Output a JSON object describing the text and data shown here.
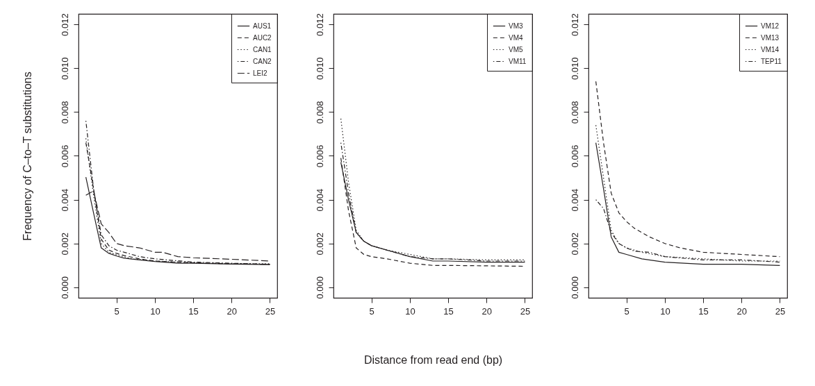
{
  "chart_data": [
    {
      "type": "line",
      "ylabel": "Frequency of C–to–T substitutions",
      "xlim": [
        0.04,
        25.96
      ],
      "ylim": [
        -0.00048,
        0.01248
      ],
      "xticks": [
        5,
        10,
        15,
        20,
        25
      ],
      "yticks": [
        {
          "value": 0,
          "label": "0.000"
        },
        {
          "value": 0.002,
          "label": "0.002"
        },
        {
          "value": 0.004,
          "label": "0.004"
        },
        {
          "value": 0.006,
          "label": "0.006"
        },
        {
          "value": 0.008,
          "label": "0.008"
        },
        {
          "value": 0.01,
          "label": "0.010"
        },
        {
          "value": 0.012,
          "label": "0.012"
        }
      ],
      "grid": false,
      "legend": "top right",
      "series": [
        {
          "name": "AUS1",
          "color": "#231f20",
          "line_style": "solid",
          "x": [
            1,
            2,
            3,
            4,
            5,
            6,
            8,
            10,
            13,
            15,
            20,
            25
          ],
          "values": [
            0.00503,
            0.0034,
            0.0018,
            0.00155,
            0.00143,
            0.00133,
            0.00125,
            0.00118,
            0.0011,
            0.0011,
            0.00106,
            0.00104
          ]
        },
        {
          "name": "AUC2",
          "color": "#231f20",
          "line_style": "dashed",
          "x": [
            1,
            2,
            3,
            4,
            5,
            6,
            8,
            10,
            15,
            20,
            25
          ],
          "values": [
            0.0066,
            0.0045,
            0.0022,
            0.0017,
            0.00155,
            0.00145,
            0.0013,
            0.0012,
            0.00112,
            0.00107,
            0.00105
          ]
        },
        {
          "name": "CAN1",
          "color": "#231f20",
          "line_style": "dotted",
          "x": [
            1,
            2,
            3,
            4,
            5,
            7,
            10,
            15,
            20,
            25
          ],
          "values": [
            0.0068,
            0.0042,
            0.002,
            0.0016,
            0.00148,
            0.0013,
            0.0012,
            0.00112,
            0.00108,
            0.00108
          ]
        },
        {
          "name": "CAN2",
          "color": "#231f20",
          "line_style": "dashdot",
          "x": [
            1,
            2,
            3,
            4,
            5,
            6,
            8,
            10,
            15,
            20,
            25
          ],
          "values": [
            0.0076,
            0.0045,
            0.0024,
            0.0019,
            0.0017,
            0.0016,
            0.0014,
            0.0013,
            0.00115,
            0.0011,
            0.00105
          ]
        },
        {
          "name": "LEI2",
          "color": "#231f20",
          "line_style": "longdash",
          "x": [
            1,
            2,
            3,
            4,
            5,
            6,
            8,
            10,
            11,
            13,
            15,
            20,
            25
          ],
          "values": [
            0.0042,
            0.0044,
            0.0029,
            0.0025,
            0.002,
            0.0019,
            0.0018,
            0.0016,
            0.0016,
            0.0014,
            0.00135,
            0.00128,
            0.0012
          ]
        }
      ]
    },
    {
      "type": "line",
      "xlabel": "Distance from read end (bp)",
      "xlim": [
        0.04,
        25.96
      ],
      "ylim": [
        -0.00048,
        0.01248
      ],
      "xticks": [
        5,
        10,
        15,
        20,
        25
      ],
      "yticks": [
        {
          "value": 0,
          "label": "0.000"
        },
        {
          "value": 0.002,
          "label": "0.002"
        },
        {
          "value": 0.004,
          "label": "0.004"
        },
        {
          "value": 0.006,
          "label": "0.006"
        },
        {
          "value": 0.008,
          "label": "0.008"
        },
        {
          "value": 0.01,
          "label": "0.010"
        },
        {
          "value": 0.012,
          "label": "0.012"
        }
      ],
      "grid": false,
      "legend": "top right",
      "series": [
        {
          "name": "VM3",
          "color": "#231f20",
          "line_style": "solid",
          "x": [
            1,
            2,
            3,
            4,
            5,
            7,
            10,
            13,
            15,
            20,
            25
          ],
          "values": [
            0.0057,
            0.004,
            0.0025,
            0.0021,
            0.0019,
            0.0017,
            0.0014,
            0.0012,
            0.0012,
            0.00115,
            0.00115
          ]
        },
        {
          "name": "VM4",
          "color": "#231f20",
          "line_style": "dashed",
          "x": [
            1,
            2,
            3,
            4,
            5,
            7,
            10,
            13,
            15,
            20,
            25
          ],
          "values": [
            0.0059,
            0.0035,
            0.0018,
            0.0015,
            0.0014,
            0.0013,
            0.0011,
            0.001,
            0.001,
            0.00098,
            0.00096
          ]
        },
        {
          "name": "VM5",
          "color": "#231f20",
          "line_style": "dotted",
          "x": [
            1,
            2,
            3,
            4,
            5,
            7,
            10,
            13,
            15,
            20,
            25
          ],
          "values": [
            0.0077,
            0.0048,
            0.0026,
            0.0021,
            0.0019,
            0.0017,
            0.0015,
            0.0013,
            0.0013,
            0.00125,
            0.00125
          ]
        },
        {
          "name": "VM11",
          "color": "#231f20",
          "line_style": "dashdot",
          "x": [
            1,
            2,
            3,
            4,
            5,
            7,
            10,
            13,
            15,
            20,
            25
          ],
          "values": [
            0.0066,
            0.0043,
            0.0025,
            0.0021,
            0.0019,
            0.0017,
            0.0014,
            0.0013,
            0.0013,
            0.0012,
            0.0012
          ]
        }
      ]
    },
    {
      "type": "line",
      "xlim": [
        0.04,
        25.96
      ],
      "ylim": [
        -0.00048,
        0.01248
      ],
      "xticks": [
        5,
        10,
        15,
        20,
        25
      ],
      "yticks": [
        {
          "value": 0,
          "label": "0.000"
        },
        {
          "value": 0.002,
          "label": "0.002"
        },
        {
          "value": 0.004,
          "label": "0.004"
        },
        {
          "value": 0.006,
          "label": "0.006"
        },
        {
          "value": 0.008,
          "label": "0.008"
        },
        {
          "value": 0.01,
          "label": "0.010"
        },
        {
          "value": 0.012,
          "label": "0.012"
        }
      ],
      "grid": false,
      "legend": "top right",
      "series": [
        {
          "name": "VM12",
          "color": "#231f20",
          "line_style": "solid",
          "x": [
            1,
            2,
            3,
            4,
            5,
            7,
            10,
            15,
            20,
            25
          ],
          "values": [
            0.0066,
            0.0045,
            0.0023,
            0.0016,
            0.0015,
            0.0013,
            0.00115,
            0.00105,
            0.00105,
            0.001
          ]
        },
        {
          "name": "VM13",
          "color": "#231f20",
          "line_style": "dashed",
          "x": [
            1,
            2,
            3,
            4,
            5,
            6,
            8,
            10,
            12,
            15,
            20,
            25
          ],
          "values": [
            0.0094,
            0.0066,
            0.0043,
            0.0034,
            0.003,
            0.0027,
            0.0023,
            0.002,
            0.0018,
            0.0016,
            0.0015,
            0.0014
          ]
        },
        {
          "name": "VM14",
          "color": "#231f20",
          "line_style": "dotted",
          "x": [
            1,
            2,
            3,
            4,
            5,
            7,
            10,
            15,
            20,
            25
          ],
          "values": [
            0.0074,
            0.005,
            0.0026,
            0.002,
            0.0018,
            0.0016,
            0.0014,
            0.0013,
            0.0012,
            0.0012
          ]
        },
        {
          "name": "TEP11",
          "color": "#231f20",
          "line_style": "dashdot",
          "x": [
            1,
            2,
            3,
            4,
            5,
            6,
            8,
            10,
            15,
            20,
            25
          ],
          "values": [
            0.004,
            0.0036,
            0.0025,
            0.002,
            0.0018,
            0.00165,
            0.0016,
            0.0014,
            0.00125,
            0.00125,
            0.00115
          ]
        }
      ]
    }
  ]
}
